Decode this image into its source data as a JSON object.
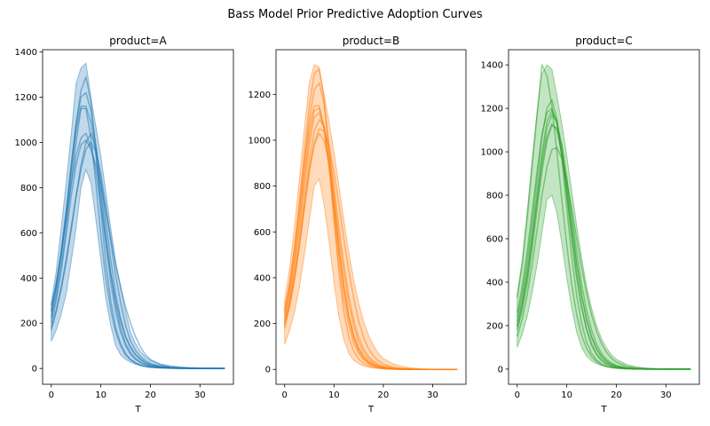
{
  "figure": {
    "suptitle": "Bass Model Prior Predictive Adoption Curves"
  },
  "chart_data": [
    {
      "type": "line",
      "title": "product=A",
      "xlabel": "T",
      "ylabel": "",
      "color": "#1f77b4",
      "xlim": [
        -1.75,
        36.75
      ],
      "ylim": [
        -70,
        1410
      ],
      "xticks": [
        0,
        10,
        20,
        30
      ],
      "yticks": [
        0,
        200,
        400,
        600,
        800,
        1000,
        1200,
        1400
      ],
      "band": {
        "x": [
          0,
          1,
          2,
          3,
          4,
          5,
          6,
          7,
          8,
          9,
          10,
          11,
          12,
          13,
          14,
          15,
          16,
          17,
          18,
          19,
          20,
          22,
          24,
          26,
          28,
          30,
          32,
          35
        ],
        "lower": [
          120,
          170,
          240,
          330,
          470,
          620,
          800,
          880,
          820,
          660,
          480,
          310,
          190,
          100,
          60,
          40,
          28,
          18,
          12,
          8,
          5,
          3,
          2,
          1,
          0,
          0,
          0,
          0
        ],
        "upper": [
          290,
          430,
          620,
          820,
          1030,
          1260,
          1330,
          1350,
          1200,
          1070,
          940,
          780,
          620,
          470,
          360,
          250,
          160,
          110,
          75,
          50,
          35,
          20,
          12,
          7,
          4,
          2,
          1,
          0
        ]
      },
      "series": [
        {
          "values": [
            180,
            260,
            360,
            480,
            620,
            760,
            900,
            1000,
            1040,
            980,
            840,
            660,
            480,
            330,
            220,
            140,
            90,
            60,
            40,
            25,
            15,
            8,
            4,
            2,
            1,
            0,
            0,
            0
          ]
        },
        {
          "values": [
            250,
            360,
            500,
            680,
            880,
            1080,
            1230,
            1290,
            1180,
            960,
            700,
            470,
            300,
            180,
            110,
            65,
            40,
            25,
            15,
            9,
            5,
            2,
            1,
            0,
            0,
            0,
            0,
            0
          ]
        },
        {
          "values": [
            220,
            320,
            450,
            620,
            820,
            1000,
            1150,
            1150,
            1020,
            820,
            590,
            400,
            260,
            160,
            100,
            60,
            38,
            24,
            15,
            9,
            6,
            3,
            1,
            0,
            0,
            0,
            0,
            0
          ]
        },
        {
          "values": [
            280,
            380,
            510,
            660,
            810,
            940,
            1020,
            1040,
            980,
            870,
            720,
            560,
            420,
            300,
            210,
            140,
            95,
            62,
            40,
            26,
            17,
            8,
            4,
            2,
            1,
            0,
            0,
            0
          ]
        },
        {
          "values": [
            200,
            300,
            430,
            590,
            760,
            900,
            990,
            1010,
            970,
            900,
            810,
            700,
            580,
            460,
            360,
            270,
            200,
            140,
            95,
            60,
            40,
            17,
            7,
            3,
            1,
            0,
            0,
            0
          ]
        },
        {
          "values": [
            230,
            350,
            500,
            680,
            870,
            1050,
            1160,
            1160,
            1090,
            950,
            760,
            560,
            380,
            250,
            160,
            100,
            62,
            40,
            26,
            17,
            11,
            5,
            2,
            1,
            0,
            0,
            0,
            0
          ]
        },
        {
          "values": [
            170,
            250,
            350,
            470,
            610,
            760,
            880,
            970,
            1000,
            960,
            860,
            720,
            560,
            410,
            290,
            190,
            120,
            80,
            52,
            34,
            22,
            10,
            4,
            2,
            1,
            0,
            0,
            0
          ]
        },
        {
          "values": [
            260,
            370,
            520,
            700,
            900,
            1080,
            1200,
            1220,
            1140,
            990,
            800,
            600,
            420,
            280,
            180,
            110,
            70,
            44,
            28,
            17,
            10,
            4,
            2,
            1,
            0,
            0,
            0,
            0
          ]
        }
      ]
    },
    {
      "type": "line",
      "title": "product=B",
      "xlabel": "T",
      "ylabel": "",
      "color": "#ff7f0e",
      "xlim": [
        -1.75,
        36.75
      ],
      "ylim": [
        -65,
        1395
      ],
      "xticks": [
        0,
        10,
        20,
        30
      ],
      "yticks": [
        0,
        200,
        400,
        600,
        800,
        1000,
        1200
      ],
      "band": {
        "x": [
          0,
          1,
          2,
          3,
          4,
          5,
          6,
          7,
          8,
          9,
          10,
          11,
          12,
          13,
          14,
          15,
          16,
          17,
          18,
          19,
          20,
          22,
          24,
          26,
          28,
          30,
          32,
          35
        ],
        "lower": [
          110,
          170,
          250,
          360,
          500,
          650,
          800,
          830,
          720,
          560,
          380,
          230,
          130,
          70,
          40,
          25,
          15,
          10,
          6,
          4,
          2,
          1,
          0,
          0,
          0,
          0,
          0,
          0
        ],
        "upper": [
          300,
          440,
          620,
          830,
          1050,
          1250,
          1330,
          1320,
          1200,
          1080,
          950,
          800,
          650,
          510,
          390,
          290,
          210,
          150,
          105,
          70,
          48,
          24,
          12,
          6,
          3,
          1,
          0,
          0
        ]
      },
      "series": [
        {
          "values": [
            200,
            290,
            400,
            540,
            700,
            860,
            980,
            1030,
            1000,
            900,
            750,
            580,
            420,
            290,
            190,
            120,
            75,
            46,
            28,
            17,
            10,
            4,
            2,
            1,
            0,
            0,
            0,
            0
          ]
        },
        {
          "values": [
            250,
            370,
            530,
            730,
            950,
            1150,
            1290,
            1310,
            1180,
            940,
            660,
            420,
            250,
            140,
            80,
            45,
            26,
            15,
            9,
            5,
            3,
            1,
            0,
            0,
            0,
            0,
            0,
            0
          ]
        },
        {
          "values": [
            220,
            330,
            470,
            640,
            840,
            1020,
            1130,
            1140,
            1050,
            880,
            660,
            460,
            300,
            190,
            115,
            70,
            42,
            25,
            15,
            9,
            5,
            2,
            1,
            0,
            0,
            0,
            0,
            0
          ]
        },
        {
          "values": [
            180,
            270,
            390,
            540,
            710,
            870,
            990,
            1050,
            1040,
            970,
            860,
            720,
            570,
            430,
            310,
            210,
            140,
            90,
            58,
            37,
            23,
            9,
            4,
            1,
            0,
            0,
            0,
            0
          ]
        },
        {
          "values": [
            260,
            380,
            530,
            710,
            900,
            1060,
            1150,
            1150,
            1060,
            900,
            700,
            510,
            350,
            230,
            145,
            90,
            55,
            33,
            20,
            12,
            7,
            3,
            1,
            0,
            0,
            0,
            0,
            0
          ]
        },
        {
          "values": [
            210,
            310,
            440,
            610,
            800,
            980,
            1100,
            1120,
            1050,
            900,
            720,
            530,
            370,
            240,
            150,
            95,
            58,
            35,
            21,
            13,
            8,
            3,
            1,
            0,
            0,
            0,
            0,
            0
          ]
        },
        {
          "values": [
            190,
            280,
            400,
            560,
            740,
            910,
            1040,
            1090,
            1060,
            960,
            800,
            620,
            460,
            320,
            215,
            140,
            90,
            57,
            36,
            22,
            14,
            5,
            2,
            1,
            0,
            0,
            0,
            0
          ]
        },
        {
          "values": [
            240,
            350,
            500,
            680,
            890,
            1090,
            1220,
            1250,
            1160,
            980,
            750,
            530,
            350,
            220,
            135,
            80,
            48,
            28,
            17,
            10,
            6,
            2,
            1,
            0,
            0,
            0,
            0,
            0
          ]
        }
      ]
    },
    {
      "type": "line",
      "title": "product=C",
      "xlabel": "T",
      "ylabel": "",
      "color": "#2ca02c",
      "xlim": [
        -1.75,
        36.75
      ],
      "ylim": [
        -70,
        1470
      ],
      "xticks": [
        0,
        10,
        20,
        30
      ],
      "yticks": [
        0,
        200,
        400,
        600,
        800,
        1000,
        1200,
        1400
      ],
      "band": {
        "x": [
          0,
          1,
          2,
          3,
          4,
          5,
          6,
          7,
          8,
          9,
          10,
          11,
          12,
          13,
          14,
          15,
          16,
          17,
          18,
          19,
          20,
          22,
          24,
          26,
          28,
          30,
          32,
          35
        ],
        "lower": [
          100,
          160,
          240,
          350,
          480,
          630,
          780,
          800,
          720,
          580,
          420,
          280,
          170,
          100,
          60,
          38,
          25,
          16,
          10,
          6,
          4,
          2,
          1,
          0,
          0,
          0,
          0,
          0
        ],
        "upper": [
          340,
          500,
          720,
          960,
          1180,
          1360,
          1400,
          1380,
          1260,
          1130,
          980,
          820,
          660,
          510,
          380,
          280,
          200,
          140,
          98,
          66,
          45,
          22,
          10,
          5,
          2,
          1,
          0,
          0
        ]
      },
      "series": [
        {
          "values": [
            330,
            480,
            690,
            930,
            1170,
            1400,
            1350,
            1210,
            1000,
            780,
            570,
            390,
            250,
            155,
            95,
            57,
            34,
            20,
            12,
            7,
            4,
            1,
            0,
            0,
            0,
            0,
            0,
            0
          ]
        },
        {
          "values": [
            200,
            300,
            430,
            590,
            770,
            940,
            1070,
            1130,
            1100,
            990,
            830,
            650,
            480,
            340,
            230,
            150,
            96,
            60,
            37,
            23,
            14,
            5,
            2,
            1,
            0,
            0,
            0,
            0
          ]
        },
        {
          "values": [
            180,
            270,
            390,
            550,
            730,
            910,
            1050,
            1120,
            1110,
            1030,
            880,
            710,
            540,
            390,
            270,
            180,
            115,
            72,
            45,
            28,
            17,
            6,
            2,
            1,
            0,
            0,
            0,
            0
          ]
        },
        {
          "values": [
            240,
            350,
            500,
            680,
            880,
            1070,
            1200,
            1240,
            1150,
            970,
            740,
            520,
            340,
            210,
            125,
            73,
            42,
            24,
            14,
            8,
            5,
            2,
            1,
            0,
            0,
            0,
            0,
            0
          ]
        },
        {
          "values": [
            220,
            320,
            460,
            630,
            820,
            1000,
            1140,
            1190,
            1140,
            1000,
            810,
            610,
            430,
            290,
            185,
            115,
            70,
            42,
            25,
            15,
            9,
            3,
            1,
            0,
            0,
            0,
            0,
            0
          ]
        },
        {
          "values": [
            150,
            230,
            340,
            480,
            640,
            800,
            930,
            1010,
            1020,
            970,
            870,
            740,
            600,
            470,
            350,
            250,
            175,
            118,
            78,
            50,
            32,
            13,
            5,
            2,
            1,
            0,
            0,
            0
          ]
        },
        {
          "values": [
            260,
            380,
            540,
            720,
            910,
            1080,
            1180,
            1200,
            1130,
            990,
            800,
            600,
            420,
            280,
            180,
            110,
            66,
            39,
            23,
            14,
            8,
            3,
            1,
            0,
            0,
            0,
            0,
            0
          ]
        },
        {
          "values": [
            190,
            290,
            420,
            590,
            780,
            970,
            1110,
            1170,
            1140,
            1030,
            860,
            670,
            490,
            340,
            225,
            145,
            90,
            55,
            33,
            20,
            12,
            4,
            1,
            0,
            0,
            0,
            0,
            0
          ]
        }
      ]
    }
  ]
}
